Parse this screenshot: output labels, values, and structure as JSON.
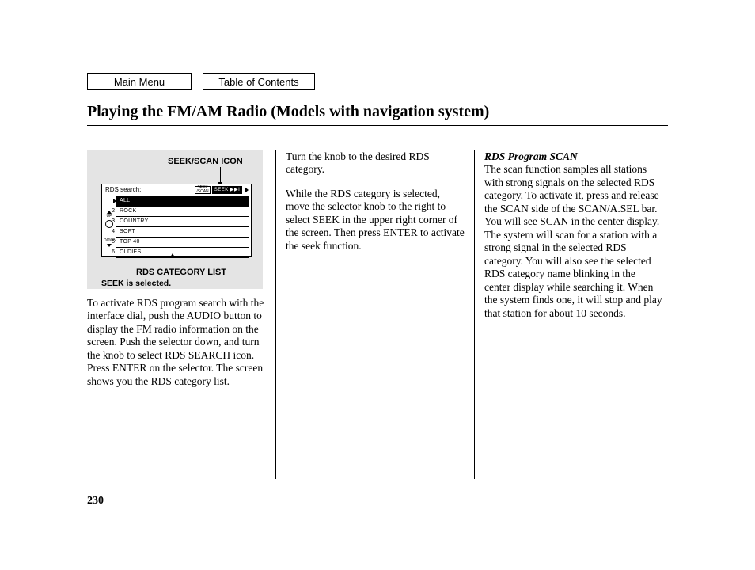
{
  "nav": {
    "main_menu": "Main Menu",
    "toc": "Table of Contents"
  },
  "title": "Playing the FM/AM Radio (Models with navigation system)",
  "page_number": "230",
  "diagram": {
    "callout_top": "SEEK/SCAN ICON",
    "callout_list": "RDS CATEGORY LIST",
    "callout_selected": "SEEK is selected.",
    "screen_label": "RDS search:",
    "scan_chip": "SEEK /SCAN",
    "seek_chip": "SEEK ▶▶I",
    "rows": [
      {
        "n": "1",
        "label": "ALL",
        "hl": true
      },
      {
        "n": "2",
        "label": "ROCK",
        "hl": false
      },
      {
        "n": "3",
        "label": "COUNTRY",
        "hl": false
      },
      {
        "n": "4",
        "label": "SOFT",
        "hl": false
      },
      {
        "n": "5",
        "label": "TOP 40",
        "hl": false
      },
      {
        "n": "6",
        "label": "OLDIES",
        "hl": false
      }
    ],
    "side_up": "UP",
    "side_down": "DOWN"
  },
  "col1": {
    "p1": "To activate RDS program search with the interface dial, push the AUDIO button to display the FM radio information on the screen. Push the selector down, and turn the knob to select RDS SEARCH icon. Press ENTER on the selector. The screen shows you the RDS category list."
  },
  "col2": {
    "p1": "Turn the knob to the desired RDS category.",
    "p2": "While the RDS category is selected, move the selector knob to the right to select SEEK in the upper right corner of the screen. Then press ENTER to activate the seek function."
  },
  "col3": {
    "heading": "RDS Program SCAN",
    "p1": "The scan function samples all stations with strong signals on the selected RDS category. To activate it, press and release the SCAN side of the SCAN/A.SEL bar. You will see SCAN in the center display. The system will scan for a station with a strong signal in the selected RDS category. You will also see the selected RDS category name blinking in the center display while searching it. When the system finds one, it will stop and play that station for about 10 seconds."
  }
}
